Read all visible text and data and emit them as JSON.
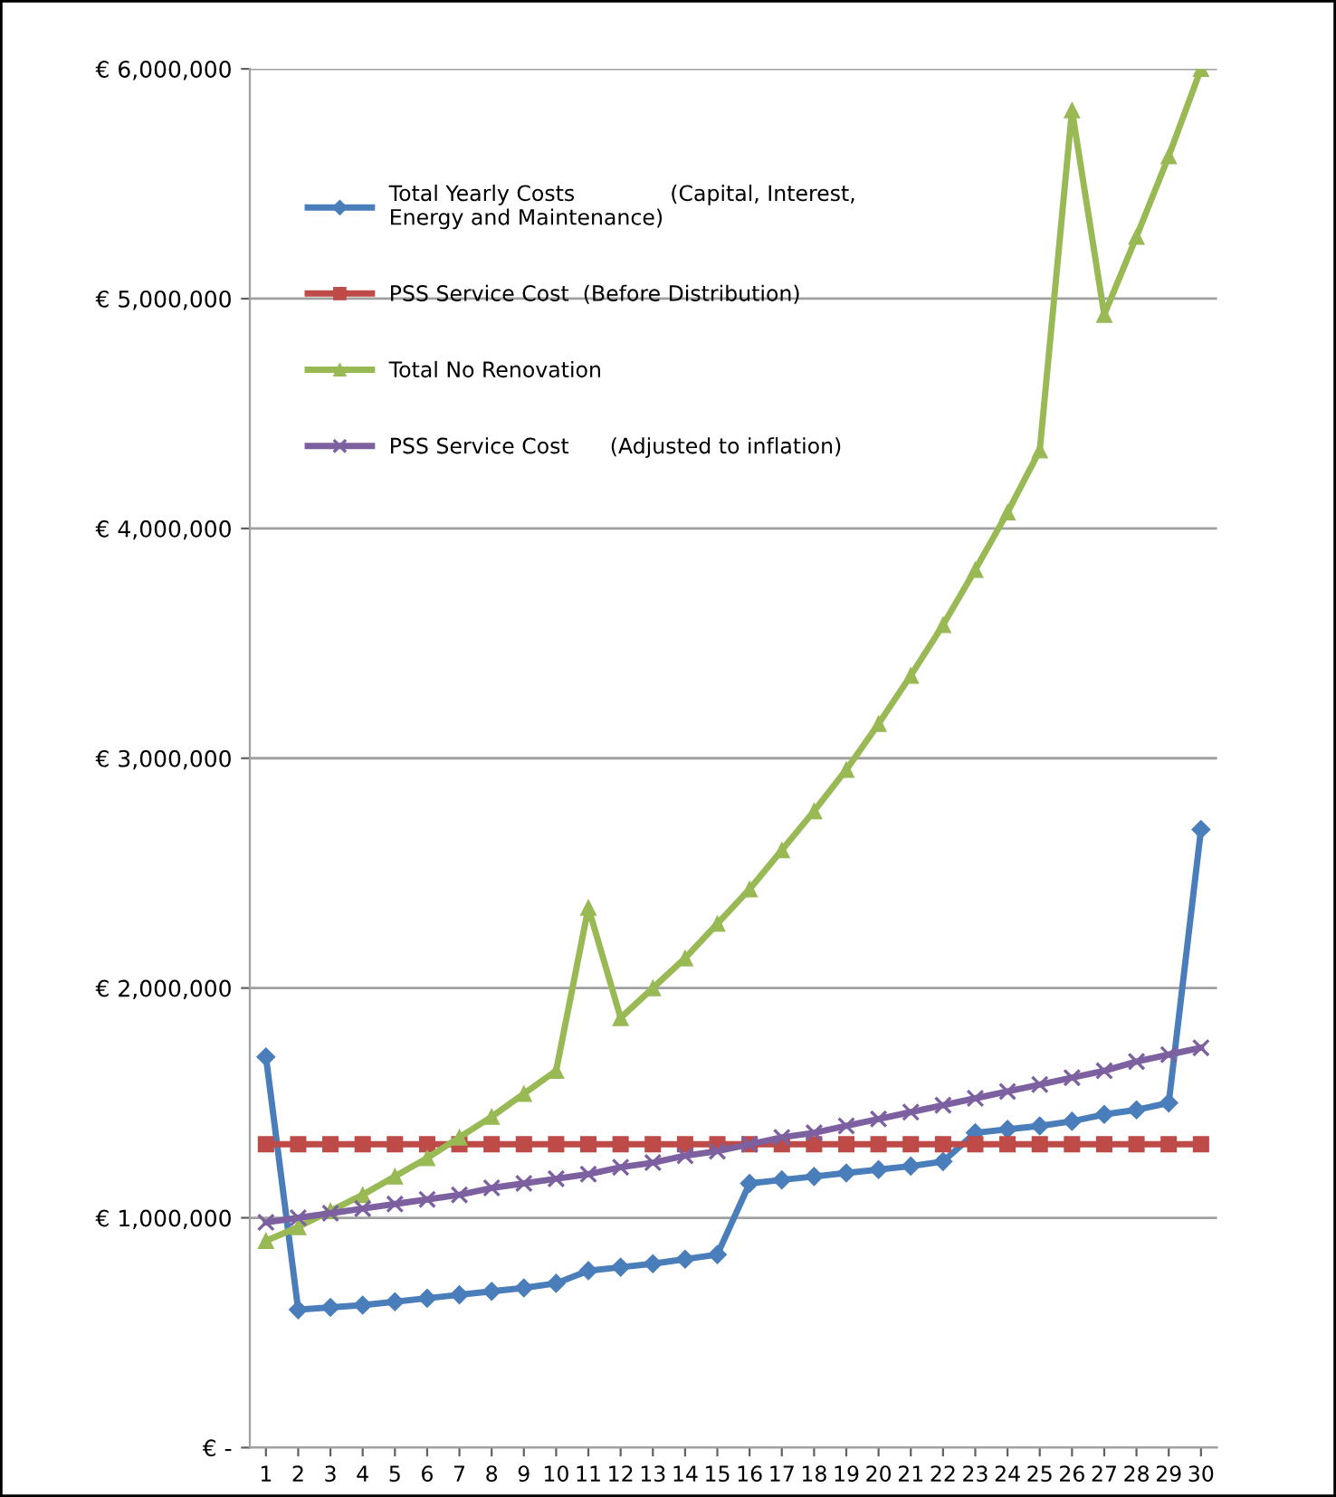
{
  "chart_data": {
    "type": "line",
    "categories": [
      "1",
      "2",
      "3",
      "4",
      "5",
      "6",
      "7",
      "8",
      "9",
      "10",
      "11",
      "12",
      "13",
      "14",
      "15",
      "16",
      "17",
      "18",
      "19",
      "20",
      "21",
      "22",
      "23",
      "24",
      "25",
      "26",
      "27",
      "28",
      "29",
      "30"
    ],
    "ylim": [
      0,
      6000000
    ],
    "yticks": [
      {
        "value": 0,
        "label": "€ -"
      },
      {
        "value": 1000000,
        "label": "€ 1,000,000"
      },
      {
        "value": 2000000,
        "label": "€ 2,000,000"
      },
      {
        "value": 3000000,
        "label": "€ 3,000,000"
      },
      {
        "value": 4000000,
        "label": "€ 4,000,000"
      },
      {
        "value": 5000000,
        "label": "€ 5,000,000"
      },
      {
        "value": 6000000,
        "label": "€ 6,000,000"
      }
    ],
    "grid": "y",
    "legend": "top left",
    "series": [
      {
        "name": "Total Yearly Costs              (Capital, Interest,\nEnergy and Maintenance)",
        "color": "#4a7ebb",
        "marker": "diamond",
        "values": [
          1700000,
          600000,
          610000,
          620000,
          635000,
          650000,
          665000,
          680000,
          695000,
          715000,
          770000,
          785000,
          800000,
          820000,
          840000,
          1150000,
          1165000,
          1180000,
          1195000,
          1210000,
          1225000,
          1245000,
          1370000,
          1385000,
          1400000,
          1420000,
          1450000,
          1470000,
          1500000,
          2690000
        ]
      },
      {
        "name": "PSS Service Cost  (Before Distribution)",
        "color": "#be4b48",
        "marker": "square",
        "values": [
          1320000,
          1320000,
          1320000,
          1320000,
          1320000,
          1320000,
          1320000,
          1320000,
          1320000,
          1320000,
          1320000,
          1320000,
          1320000,
          1320000,
          1320000,
          1320000,
          1320000,
          1320000,
          1320000,
          1320000,
          1320000,
          1320000,
          1320000,
          1320000,
          1320000,
          1320000,
          1320000,
          1320000,
          1320000,
          1320000
        ]
      },
      {
        "name": "Total No Renovation",
        "color": "#98b954",
        "marker": "triangle",
        "values": [
          900000,
          960000,
          1030000,
          1100000,
          1180000,
          1260000,
          1350000,
          1440000,
          1540000,
          1640000,
          2350000,
          1870000,
          2000000,
          2130000,
          2280000,
          2430000,
          2600000,
          2770000,
          2950000,
          3150000,
          3360000,
          3580000,
          3820000,
          4070000,
          4340000,
          5820000,
          4930000,
          5270000,
          5620000,
          6000000
        ]
      },
      {
        "name": "PSS Service Cost      (Adjusted to inflation)",
        "color": "#7d60a0",
        "marker": "cross",
        "values": [
          980000,
          1000000,
          1020000,
          1040000,
          1060000,
          1080000,
          1100000,
          1130000,
          1150000,
          1170000,
          1190000,
          1220000,
          1240000,
          1270000,
          1290000,
          1320000,
          1350000,
          1370000,
          1400000,
          1430000,
          1460000,
          1490000,
          1520000,
          1550000,
          1580000,
          1610000,
          1640000,
          1680000,
          1710000,
          1740000
        ]
      }
    ]
  }
}
